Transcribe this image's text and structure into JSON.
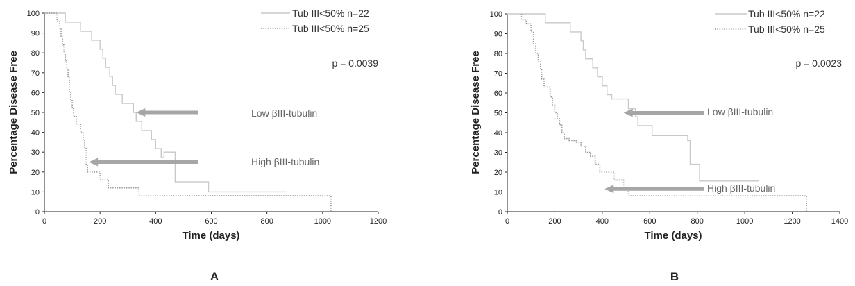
{
  "chart_data": [
    {
      "type": "line",
      "panel_label": "A",
      "xlabel": "Time (days)",
      "ylabel": "Percentage Disease Free",
      "xlim": [
        0,
        1200
      ],
      "ylim": [
        0,
        100
      ],
      "xticks": [
        0,
        200,
        400,
        600,
        800,
        1000,
        1200
      ],
      "yticks": [
        0,
        10,
        20,
        30,
        40,
        50,
        60,
        70,
        80,
        90,
        100
      ],
      "grid": false,
      "legend_position": "top-right",
      "p_value": "p = 0.0039",
      "series": [
        {
          "name": "Tub III<50% n=22",
          "style": "solid",
          "color": "#c8c8c8",
          "points": [
            [
              0,
              100
            ],
            [
              75,
              100
            ],
            [
              75,
              95.5
            ],
            [
              130,
              95.5
            ],
            [
              130,
              90.9
            ],
            [
              170,
              90.9
            ],
            [
              170,
              86.4
            ],
            [
              200,
              86.4
            ],
            [
              200,
              81.8
            ],
            [
              210,
              81.8
            ],
            [
              210,
              77.3
            ],
            [
              220,
              77.3
            ],
            [
              220,
              72.7
            ],
            [
              235,
              72.7
            ],
            [
              235,
              68.2
            ],
            [
              245,
              68.2
            ],
            [
              245,
              63.6
            ],
            [
              255,
              63.6
            ],
            [
              255,
              59.1
            ],
            [
              280,
              59.1
            ],
            [
              280,
              54.5
            ],
            [
              320,
              54.5
            ],
            [
              320,
              50
            ],
            [
              330,
              50
            ],
            [
              330,
              45.5
            ],
            [
              350,
              45.5
            ],
            [
              350,
              40.9
            ],
            [
              385,
              40.9
            ],
            [
              385,
              36.4
            ],
            [
              400,
              36.4
            ],
            [
              400,
              31.8
            ],
            [
              420,
              31.8
            ],
            [
              420,
              27.3
            ],
            [
              430,
              27.3
            ],
            [
              430,
              30
            ],
            [
              470,
              30
            ],
            [
              470,
              15
            ],
            [
              590,
              15
            ],
            [
              590,
              10
            ],
            [
              870,
              10
            ]
          ]
        },
        {
          "name": "Tub III<50% n=25",
          "style": "dotted",
          "color": "#9a9a9a",
          "points": [
            [
              0,
              100
            ],
            [
              45,
              100
            ],
            [
              45,
              96
            ],
            [
              55,
              96
            ],
            [
              55,
              92
            ],
            [
              60,
              92
            ],
            [
              60,
              88
            ],
            [
              65,
              88
            ],
            [
              65,
              84
            ],
            [
              70,
              84
            ],
            [
              70,
              80
            ],
            [
              75,
              80
            ],
            [
              75,
              76
            ],
            [
              80,
              76
            ],
            [
              80,
              72
            ],
            [
              85,
              72
            ],
            [
              85,
              68
            ],
            [
              90,
              68
            ],
            [
              90,
              60
            ],
            [
              95,
              60
            ],
            [
              95,
              56
            ],
            [
              100,
              56
            ],
            [
              100,
              52
            ],
            [
              105,
              52
            ],
            [
              105,
              48
            ],
            [
              115,
              48
            ],
            [
              115,
              44
            ],
            [
              130,
              44
            ],
            [
              130,
              40
            ],
            [
              140,
              40
            ],
            [
              140,
              36
            ],
            [
              145,
              36
            ],
            [
              145,
              32
            ],
            [
              150,
              32
            ],
            [
              150,
              24
            ],
            [
              155,
              24
            ],
            [
              155,
              20
            ],
            [
              200,
              20
            ],
            [
              200,
              16
            ],
            [
              230,
              16
            ],
            [
              230,
              12
            ],
            [
              340,
              12
            ],
            [
              340,
              8
            ],
            [
              1030,
              8
            ],
            [
              1030,
              0
            ]
          ]
        }
      ],
      "annotations": [
        {
          "text": "Low βIII-tubulin",
          "target_x": 330,
          "target_y": 50
        },
        {
          "text": "High βIII-tubulin",
          "target_x": 160,
          "target_y": 25
        }
      ]
    },
    {
      "type": "line",
      "panel_label": "B",
      "xlabel": "Time (days)",
      "ylabel": "Percentage Disease Free",
      "xlim": [
        0,
        1400
      ],
      "ylim": [
        0,
        100
      ],
      "xticks": [
        0,
        200,
        400,
        600,
        800,
        1000,
        1200,
        1400
      ],
      "yticks": [
        0,
        10,
        20,
        30,
        40,
        50,
        60,
        70,
        80,
        90,
        100
      ],
      "grid": false,
      "legend_position": "top-right",
      "p_value": "p = 0.0023",
      "series": [
        {
          "name": "Tub III<50% n=22",
          "style": "solid",
          "color": "#c8c8c8",
          "points": [
            [
              0,
              100
            ],
            [
              160,
              100
            ],
            [
              160,
              95.5
            ],
            [
              265,
              95.5
            ],
            [
              265,
              90.9
            ],
            [
              310,
              90.9
            ],
            [
              310,
              86.4
            ],
            [
              320,
              86.4
            ],
            [
              320,
              81.8
            ],
            [
              330,
              81.8
            ],
            [
              330,
              77.3
            ],
            [
              360,
              77.3
            ],
            [
              360,
              72.7
            ],
            [
              380,
              72.7
            ],
            [
              380,
              68.2
            ],
            [
              400,
              68.2
            ],
            [
              400,
              63.6
            ],
            [
              420,
              63.6
            ],
            [
              420,
              59.1
            ],
            [
              440,
              59.1
            ],
            [
              440,
              57
            ],
            [
              510,
              57
            ],
            [
              510,
              52
            ],
            [
              540,
              52
            ],
            [
              540,
              48
            ],
            [
              550,
              48
            ],
            [
              550,
              43.5
            ],
            [
              610,
              43.5
            ],
            [
              610,
              38.5
            ],
            [
              760,
              38.5
            ],
            [
              760,
              36
            ],
            [
              770,
              36
            ],
            [
              770,
              24
            ],
            [
              810,
              24
            ],
            [
              810,
              15.5
            ],
            [
              1060,
              15.5
            ]
          ]
        },
        {
          "name": "Tub III<50% n=25",
          "style": "dotted",
          "color": "#9a9a9a",
          "points": [
            [
              60,
              100
            ],
            [
              60,
              97
            ],
            [
              80,
              97
            ],
            [
              80,
              95
            ],
            [
              100,
              95
            ],
            [
              100,
              91
            ],
            [
              110,
              91
            ],
            [
              110,
              85
            ],
            [
              120,
              85
            ],
            [
              120,
              80
            ],
            [
              130,
              80
            ],
            [
              130,
              76
            ],
            [
              140,
              76
            ],
            [
              140,
              72
            ],
            [
              145,
              72
            ],
            [
              145,
              67
            ],
            [
              155,
              67
            ],
            [
              155,
              63
            ],
            [
              180,
              63
            ],
            [
              180,
              58
            ],
            [
              190,
              58
            ],
            [
              190,
              54
            ],
            [
              200,
              54
            ],
            [
              200,
              50
            ],
            [
              210,
              50
            ],
            [
              210,
              47
            ],
            [
              220,
              47
            ],
            [
              220,
              44
            ],
            [
              230,
              44
            ],
            [
              230,
              40
            ],
            [
              240,
              40
            ],
            [
              240,
              37
            ],
            [
              260,
              37
            ],
            [
              260,
              36
            ],
            [
              290,
              36
            ],
            [
              290,
              35
            ],
            [
              310,
              35
            ],
            [
              310,
              33
            ],
            [
              330,
              33
            ],
            [
              330,
              30
            ],
            [
              350,
              30
            ],
            [
              350,
              28
            ],
            [
              370,
              28
            ],
            [
              370,
              24
            ],
            [
              390,
              24
            ],
            [
              390,
              20
            ],
            [
              450,
              20
            ],
            [
              450,
              16
            ],
            [
              490,
              16
            ],
            [
              490,
              12
            ],
            [
              510,
              12
            ],
            [
              510,
              8
            ],
            [
              1260,
              8
            ],
            [
              1260,
              0
            ]
          ]
        }
      ],
      "annotations": [
        {
          "text": "Low βIII-tubulin",
          "target_x": 490,
          "target_y": 50
        },
        {
          "text": "High βIII-tubulin",
          "target_x": 410,
          "target_y": 11.5
        }
      ]
    }
  ]
}
